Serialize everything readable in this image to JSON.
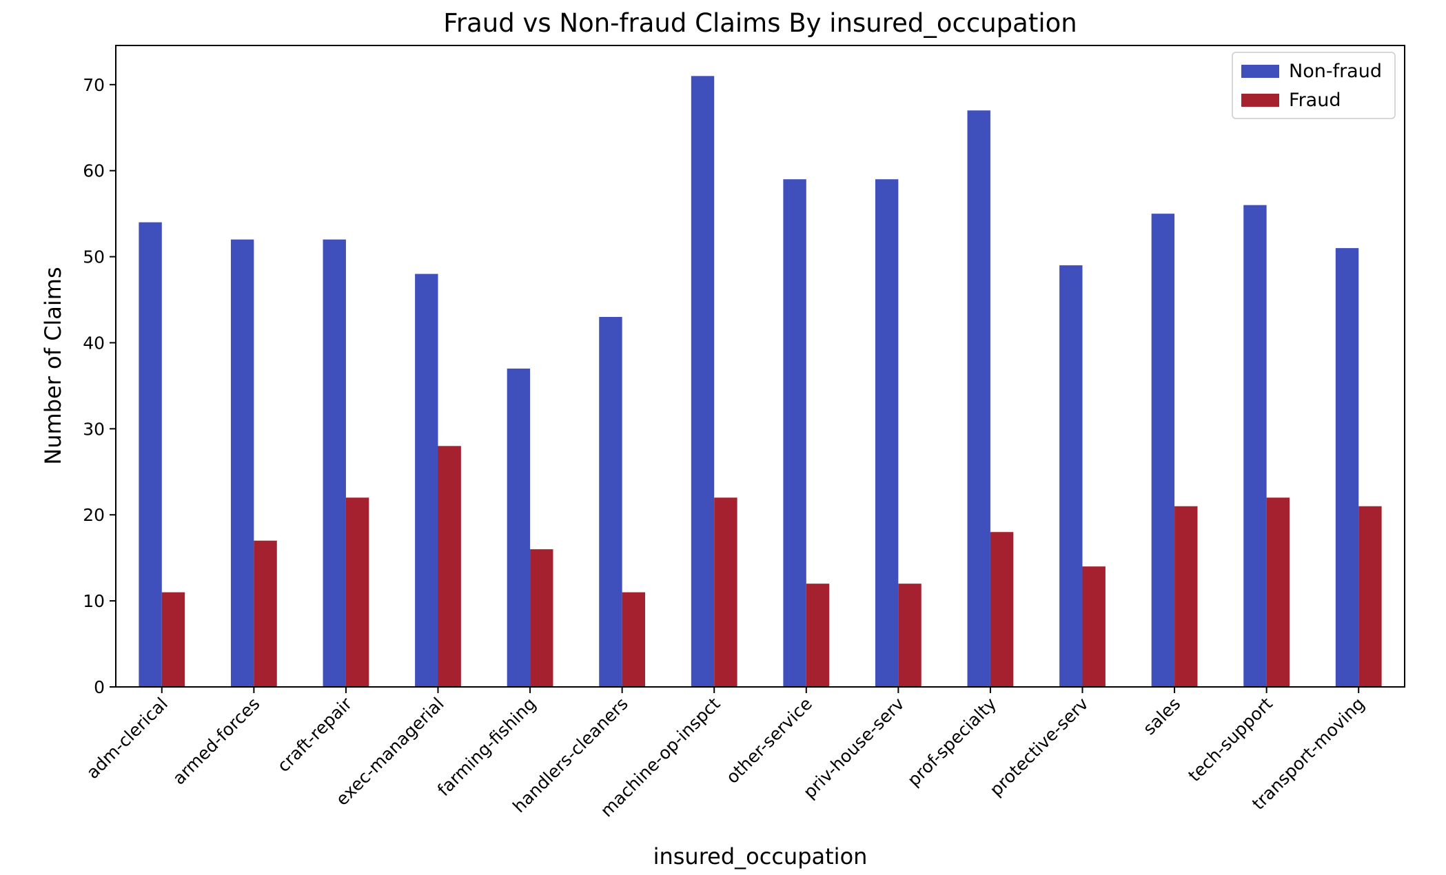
{
  "chart_data": {
    "type": "bar",
    "title": "Fraud vs Non-fraud Claims By insured_occupation",
    "xlabel": "insured_occupation",
    "ylabel": "Number of Claims",
    "ylim": [
      0,
      74.55
    ],
    "yticks": [
      0,
      10,
      20,
      30,
      40,
      50,
      60,
      70
    ],
    "grid": false,
    "legend_position": "top-right",
    "categories": [
      "adm-clerical",
      "armed-forces",
      "craft-repair",
      "exec-managerial",
      "farming-fishing",
      "handlers-cleaners",
      "machine-op-inspct",
      "other-service",
      "priv-house-serv",
      "prof-specialty",
      "protective-serv",
      "sales",
      "tech-support",
      "transport-moving"
    ],
    "series": [
      {
        "name": "Non-fraud",
        "color": "#3f4fbc",
        "values": [
          54,
          52,
          52,
          48,
          37,
          43,
          71,
          59,
          59,
          67,
          49,
          55,
          56,
          51
        ]
      },
      {
        "name": "Fraud",
        "color": "#a5212f",
        "values": [
          11,
          17,
          22,
          28,
          16,
          11,
          22,
          12,
          12,
          18,
          14,
          21,
          22,
          21
        ]
      }
    ]
  }
}
